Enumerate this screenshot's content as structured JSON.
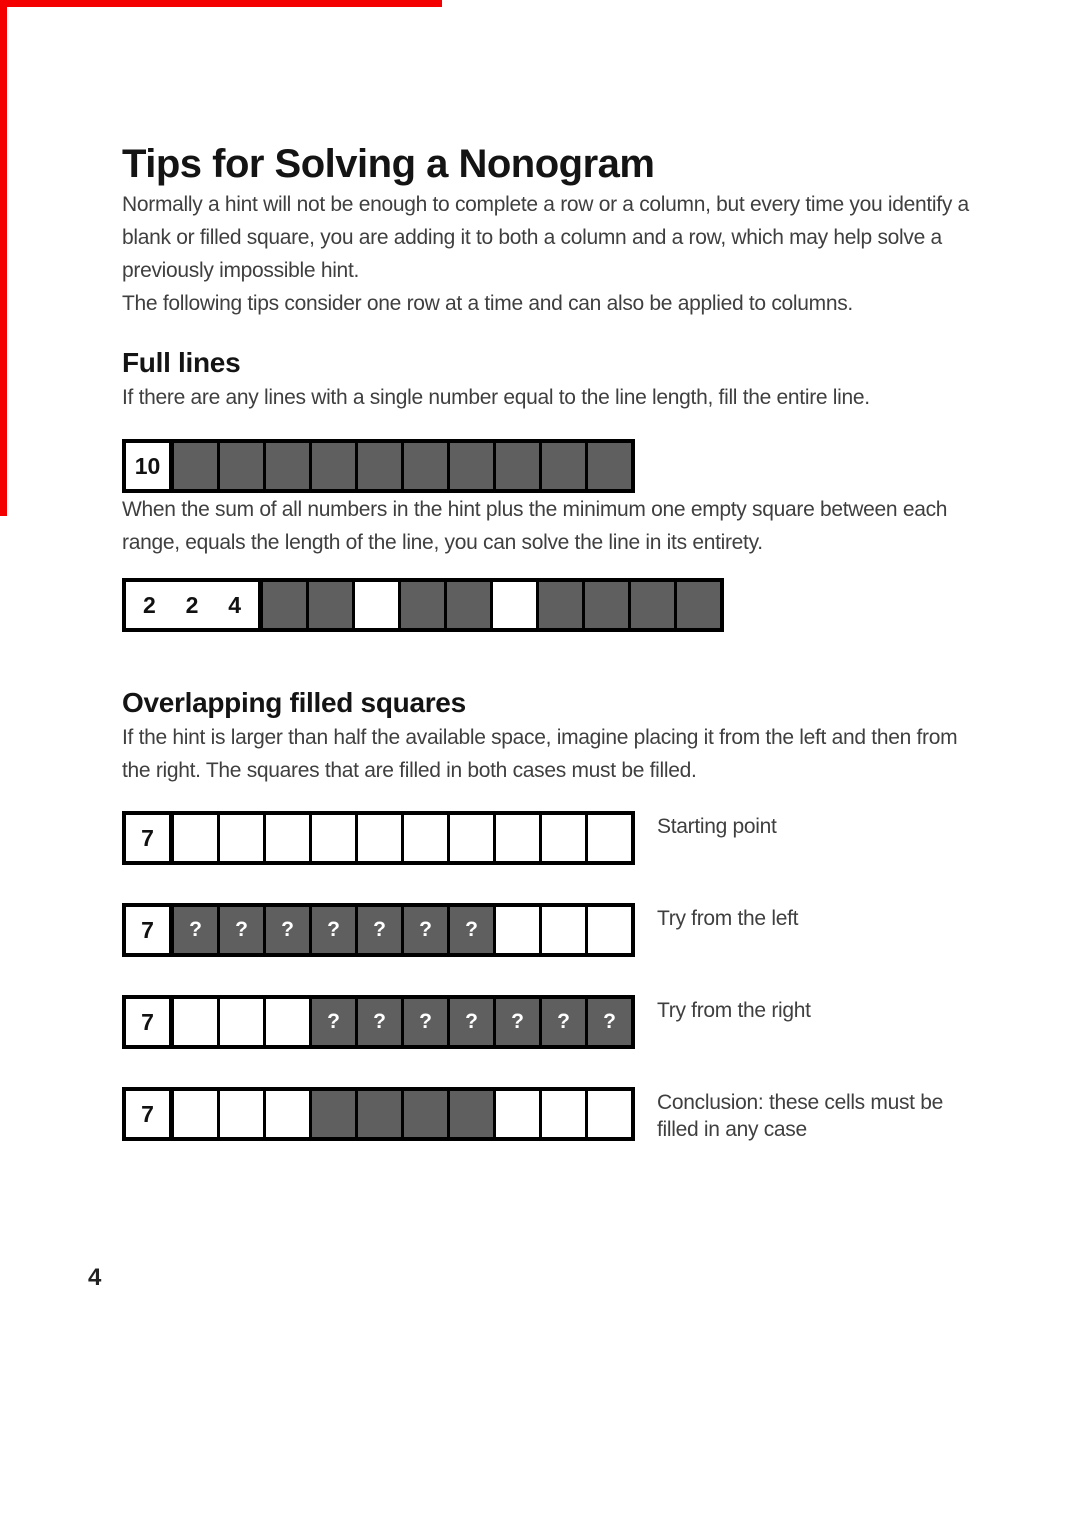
{
  "content": {
    "title": "Tips for Solving a Nonogram",
    "intro": [
      "Normally a hint will not be enough to complete a row or a column, but every time you identify a blank or filled square, you are adding it to both a column and a row, which may help solve a previously impossible hint.",
      "The following tips consider one row at a time and can also be applied to columns."
    ],
    "sections": [
      {
        "heading": "Full lines",
        "paragraphs": [
          "If there are any lines with a single number equal to the line length, fill the entire line.",
          "When the sum of all numbers in the hint plus the minimum one empty square between each range, equals the length of the line, you can solve the line in its entirety."
        ]
      },
      {
        "heading": "Overlapping filled squares",
        "paragraphs": [
          "If the hint is larger than half the available space, imagine placing it from the left and then from the right. The squares that are filled in both cases must be filled."
        ]
      }
    ],
    "page_number": "4"
  },
  "diagrams": [
    {
      "id": "full-line",
      "hints": [
        "10"
      ],
      "cells": [
        "filled",
        "filled",
        "filled",
        "filled",
        "filled",
        "filled",
        "filled",
        "filled",
        "filled",
        "filled"
      ],
      "label": ""
    },
    {
      "id": "sum-example",
      "hints": [
        "2",
        "2",
        "4"
      ],
      "cells": [
        "filled",
        "filled",
        "empty",
        "filled",
        "filled",
        "empty",
        "filled",
        "filled",
        "filled",
        "filled"
      ],
      "label": ""
    },
    {
      "id": "starting-point",
      "hints": [
        "7"
      ],
      "cells": [
        "empty",
        "empty",
        "empty",
        "empty",
        "empty",
        "empty",
        "empty",
        "empty",
        "empty",
        "empty"
      ],
      "label": "Starting point"
    },
    {
      "id": "try-from-left",
      "hints": [
        "7"
      ],
      "cells": [
        "question",
        "question",
        "question",
        "question",
        "question",
        "question",
        "question",
        "empty",
        "empty",
        "empty"
      ],
      "label": "Try from the left"
    },
    {
      "id": "try-from-right",
      "hints": [
        "7"
      ],
      "cells": [
        "empty",
        "empty",
        "empty",
        "question",
        "question",
        "question",
        "question",
        "question",
        "question",
        "question"
      ],
      "label": "Try from the right"
    },
    {
      "id": "conclusion",
      "hints": [
        "7"
      ],
      "cells": [
        "empty",
        "empty",
        "empty",
        "filled",
        "filled",
        "filled",
        "filled",
        "empty",
        "empty",
        "empty"
      ],
      "label": "Conclusion: these cells must be filled in any case"
    }
  ],
  "symbols": {
    "question": "?"
  },
  "colors": {
    "filled_cell": "#5f5f5f",
    "border": "#000000",
    "accent_red": "#f40000",
    "text": "#3f3f3f",
    "heading": "#141414"
  }
}
